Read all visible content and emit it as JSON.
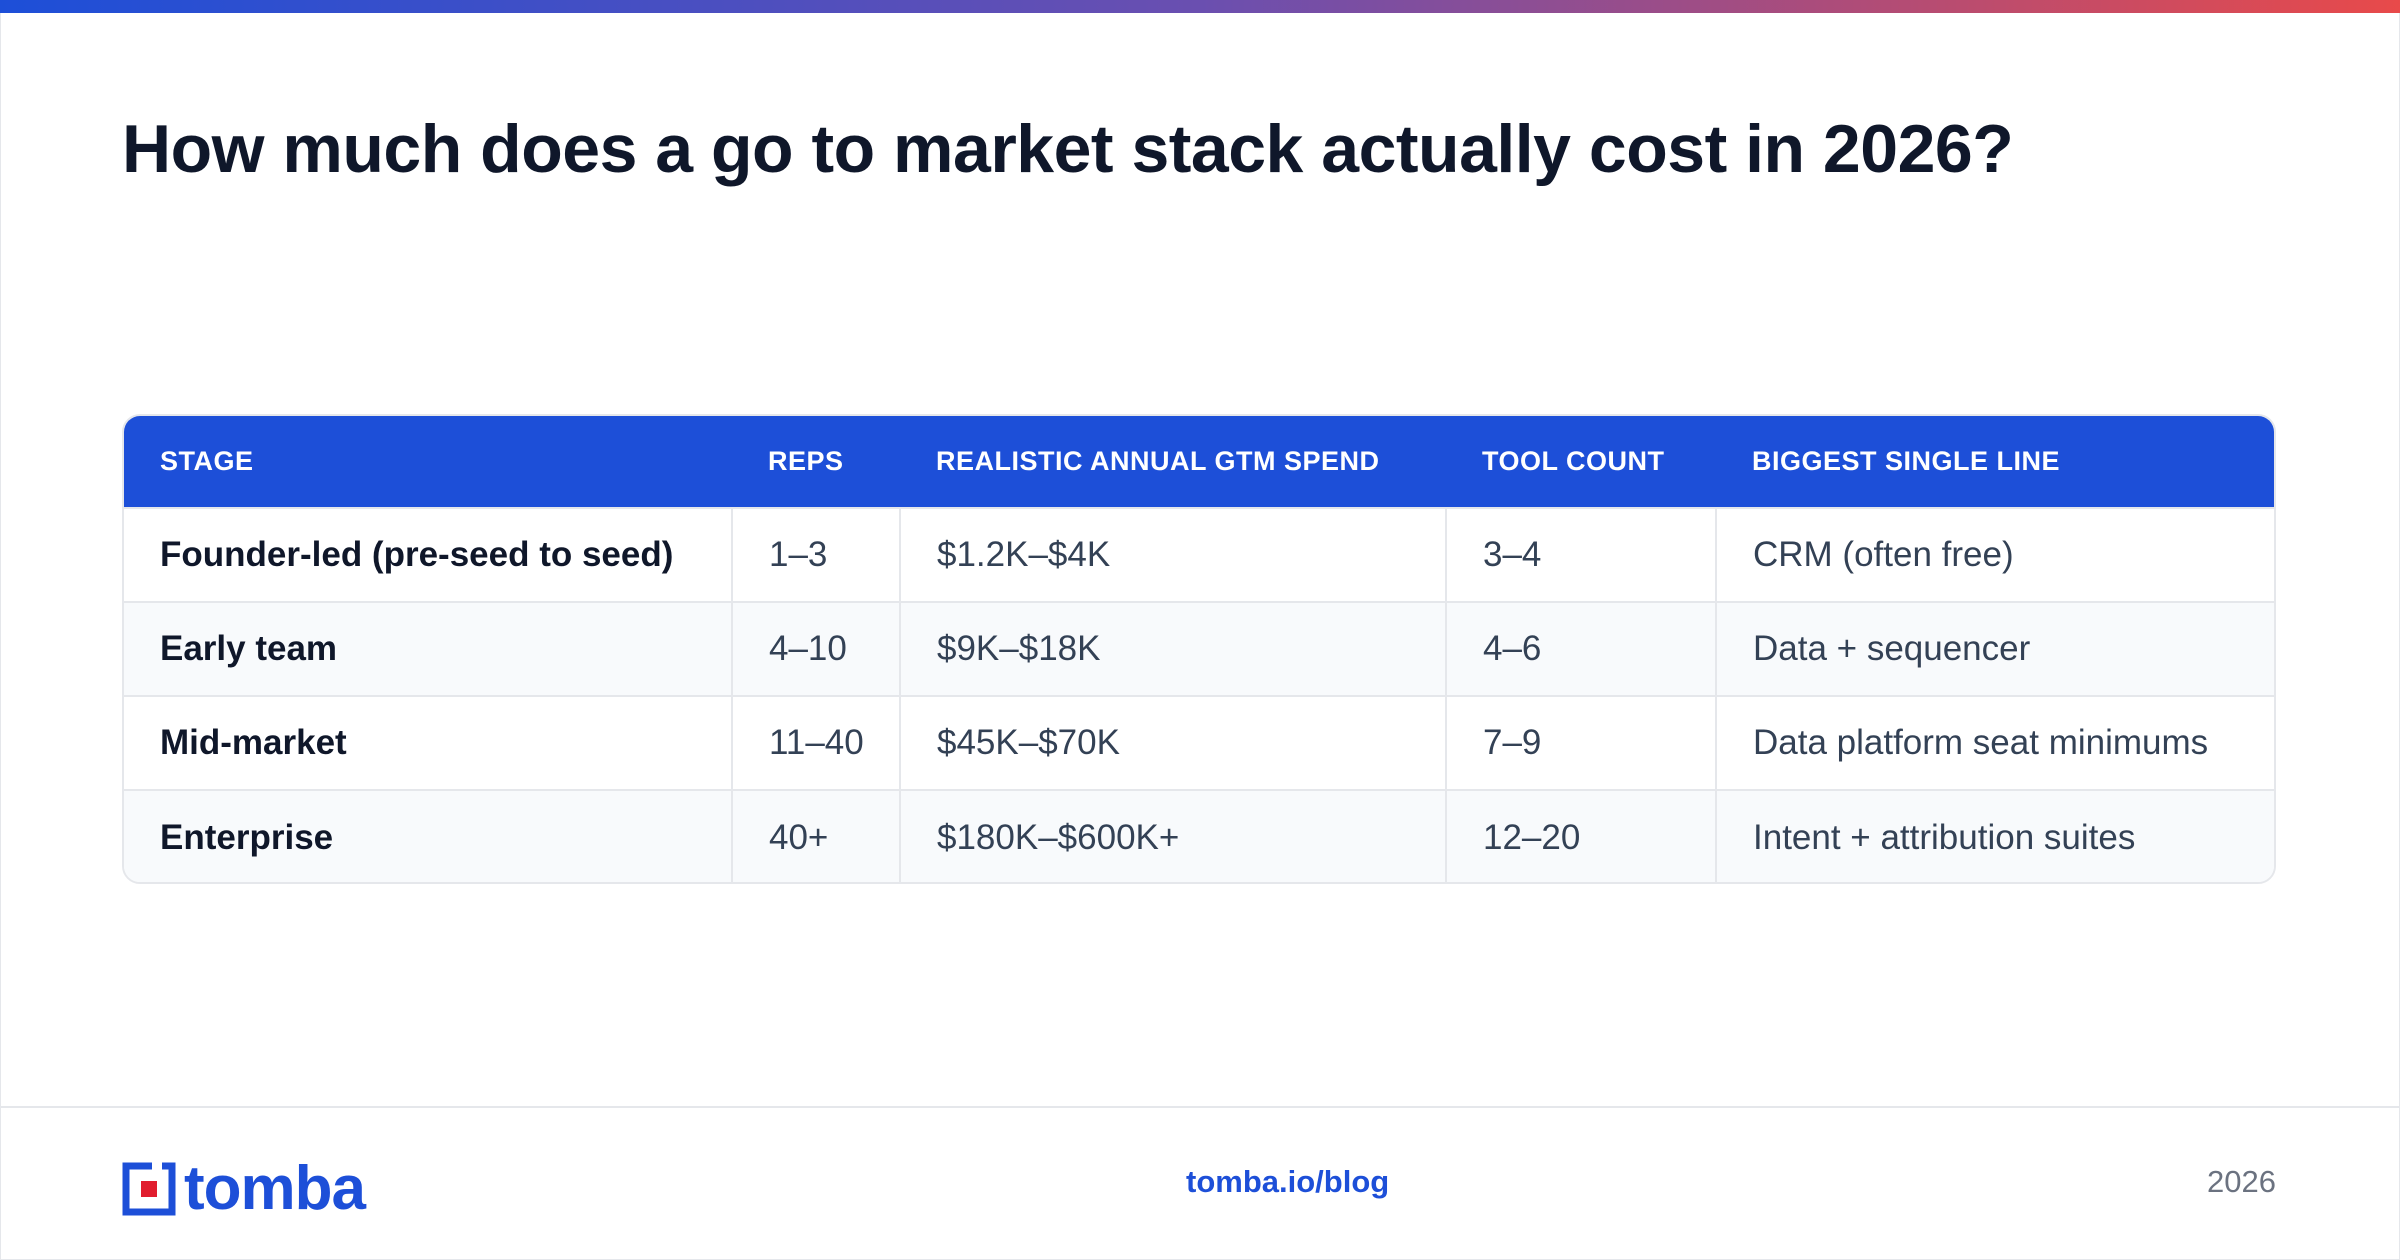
{
  "header": {
    "title": "How much does a go to market stack actually cost in 2026?"
  },
  "table": {
    "columns": [
      "STAGE",
      "REPS",
      "REALISTIC ANNUAL GTM SPEND",
      "TOOL COUNT",
      "BIGGEST SINGLE LINE"
    ],
    "rows": [
      [
        "Founder-led (pre-seed to seed)",
        "1–3",
        "$1.2K–$4K",
        "3–4",
        "CRM (often free)"
      ],
      [
        "Early team",
        "4–10",
        "$9K–$18K",
        "4–6",
        "Data + sequencer"
      ],
      [
        "Mid-market",
        "11–40",
        "$45K–$70K",
        "7–9",
        "Data platform seat minimums"
      ],
      [
        "Enterprise",
        "40+",
        "$180K–$600K+",
        "12–20",
        "Intent + attribution suites"
      ]
    ]
  },
  "footer": {
    "logo_text": "tomba",
    "link": "tomba.io/blog",
    "year": "2026"
  },
  "colors": {
    "accent": "#1d4fd8",
    "logo_red": "#e11d2e",
    "gradient_start": "#1d4fd8",
    "gradient_end": "#e84a4a"
  }
}
